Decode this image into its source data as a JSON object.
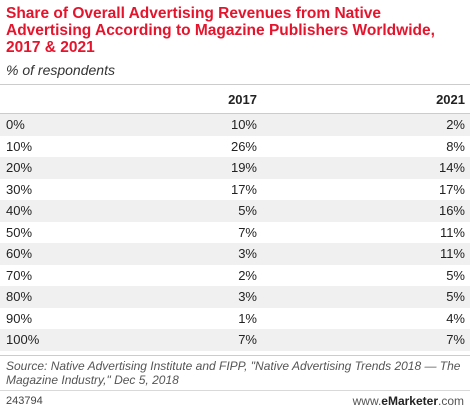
{
  "chart_data": {
    "type": "table",
    "title": "Share of Overall Advertising Revenues from Native Advertising According to Magazine Publishers Worldwide, 2017 & 2021",
    "subtitle": "% of respondents",
    "columns": [
      "",
      "2017",
      "2021"
    ],
    "categories": [
      "0%",
      "10%",
      "20%",
      "30%",
      "40%",
      "50%",
      "60%",
      "70%",
      "80%",
      "90%",
      "100%"
    ],
    "series": [
      {
        "name": "2017",
        "values": [
          10,
          26,
          19,
          17,
          5,
          7,
          3,
          2,
          3,
          1,
          7
        ]
      },
      {
        "name": "2021",
        "values": [
          2,
          8,
          14,
          17,
          16,
          11,
          11,
          5,
          5,
          4,
          7
        ]
      }
    ],
    "rows": [
      [
        "0%",
        "10%",
        "2%"
      ],
      [
        "10%",
        "26%",
        "8%"
      ],
      [
        "20%",
        "19%",
        "14%"
      ],
      [
        "30%",
        "17%",
        "17%"
      ],
      [
        "40%",
        "5%",
        "16%"
      ],
      [
        "50%",
        "7%",
        "11%"
      ],
      [
        "60%",
        "3%",
        "11%"
      ],
      [
        "70%",
        "2%",
        "5%"
      ],
      [
        "80%",
        "3%",
        "5%"
      ],
      [
        "90%",
        "1%",
        "4%"
      ],
      [
        "100%",
        "7%",
        "7%"
      ]
    ],
    "source": "Source: Native Advertising Institute and FIPP, \"Native Advertising Trends 2018 — The Magazine Industry,\" Dec 5, 2018"
  },
  "footer": {
    "chart_id": "243794",
    "logo_prefix": "www.",
    "logo_brand": "eMarketer",
    "logo_suffix": ".com"
  },
  "colors": {
    "title": "#e5142d",
    "shaded_row": "#f0f0f0"
  }
}
